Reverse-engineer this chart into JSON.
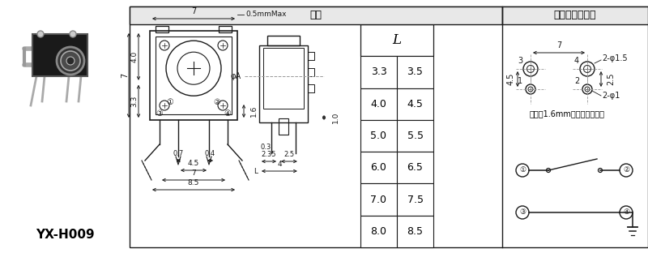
{
  "title_size": "尺寸",
  "title_install": "安装图及电路图",
  "model": "YX-H009",
  "bg_color": "#ffffff",
  "table_rows": [
    [
      "3.3",
      "3.5"
    ],
    [
      "4.0",
      "4.5"
    ],
    [
      "5.0",
      "5.5"
    ],
    [
      "6.0",
      "6.5"
    ],
    [
      "7.0",
      "7.5"
    ],
    [
      "8.0",
      "8.5"
    ]
  ],
  "note": "请使用1.6mm厘的印刷电路板",
  "line_color": "#1a1a1a",
  "dim_color": "#1a1a1a",
  "dash_color": "#999999",
  "header_bg": "#e8e8e8"
}
